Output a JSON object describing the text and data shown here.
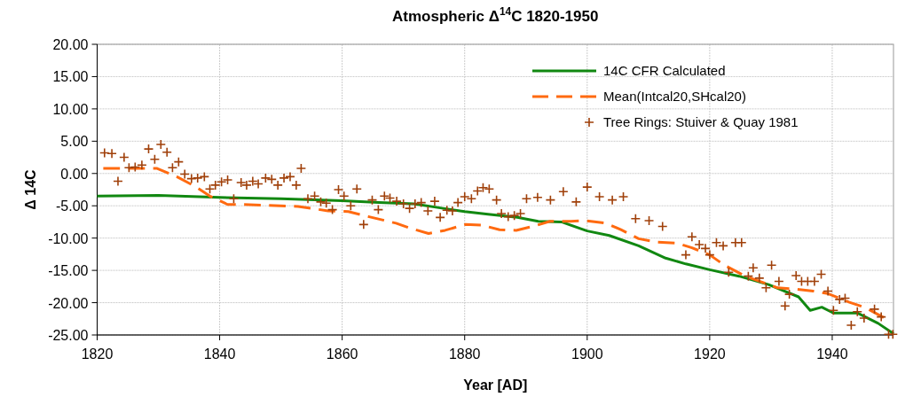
{
  "chart_data": {
    "type": "line",
    "title": "Atmospheric Δ$^{14}$C 1820-1950",
    "xlabel": "Year [AD]",
    "ylabel": "Δ 14C",
    "xlim": [
      1820,
      1950
    ],
    "xticks": [
      1820,
      1840,
      1860,
      1880,
      1900,
      1920,
      1940
    ],
    "ylim": [
      -25,
      20
    ],
    "yticks": [
      {
        "value": 20,
        "label": "20.00"
      },
      {
        "value": 15,
        "label": "15.00"
      },
      {
        "value": 10,
        "label": "10.00"
      },
      {
        "value": 5,
        "label": "5.00"
      },
      {
        "value": 0,
        "label": "0.00"
      },
      {
        "value": -5,
        "label": "-5.00"
      },
      {
        "value": -10,
        "label": "-10.00"
      },
      {
        "value": -15,
        "label": "-15.00"
      },
      {
        "value": -20,
        "label": "-20.00"
      },
      {
        "value": -25,
        "label": "-25.00"
      }
    ],
    "grid": true,
    "legend": "top right",
    "series": [
      {
        "name": "14C CFR Calculated",
        "color": "#118811",
        "line_style": "solid",
        "marker": "none",
        "x": [
          1820,
          1830,
          1840,
          1850,
          1860,
          1866,
          1871.7,
          1876.5,
          1880,
          1883.8,
          1888.6,
          1892,
          1895.8,
          1900,
          1903.6,
          1908.4,
          1912.8,
          1916.1,
          1920,
          1924.8,
          1929.6,
          1934.5,
          1936.4,
          1938.3,
          1940.2,
          1944.1,
          1947.5,
          1950
        ],
        "values": [
          -3.5,
          -3.4,
          -3.7,
          -3.9,
          -4.2,
          -4.5,
          -4.7,
          -5.4,
          -5.9,
          -6.3,
          -6.8,
          -7.4,
          -7.5,
          -8.9,
          -9.6,
          -11.2,
          -13.1,
          -14,
          -14.9,
          -15.9,
          -17.2,
          -19.1,
          -21.2,
          -20.7,
          -21.6,
          -21.6,
          -23.2,
          -24.8
        ]
      },
      {
        "name": "Mean(Intcal20,SHcal20)",
        "color": "#ff6a10",
        "line_style": "dashed",
        "marker": "none",
        "x": [
          1821,
          1829.7,
          1833,
          1836.2,
          1838.4,
          1841.3,
          1844,
          1852.8,
          1855.7,
          1857.7,
          1861,
          1864.4,
          1868.8,
          1871.2,
          1874.1,
          1876.8,
          1880.1,
          1882.8,
          1885.7,
          1888.4,
          1891.5,
          1893.9,
          1897.3,
          1899.7,
          1903.1,
          1905.5,
          1908.4,
          1911.3,
          1914.7,
          1917.1,
          1920,
          1922.4,
          1925.8,
          1931.1,
          1934,
          1936.9,
          1939.3,
          1942.7,
          1945.5,
          1948.4
        ],
        "values": [
          0.8,
          0.8,
          -0.5,
          -2.1,
          -3.5,
          -4.8,
          -4.8,
          -5.1,
          -5.5,
          -5.8,
          -5.9,
          -6.7,
          -7.7,
          -8.5,
          -9.3,
          -8.8,
          -7.9,
          -8,
          -8.7,
          -8.8,
          -8.1,
          -7.4,
          -7.4,
          -7.3,
          -7.7,
          -8.7,
          -10.1,
          -10.6,
          -10.8,
          -11.5,
          -12.6,
          -14.2,
          -15.9,
          -17.7,
          -17.9,
          -18.2,
          -18.6,
          -19.9,
          -20.8,
          -22.3
        ]
      },
      {
        "name": "Tree Rings: Stuiver & Quay 1981",
        "type": "scatter",
        "color": "#a0400a",
        "marker": "cross",
        "x": [
          1821.2,
          1822.4,
          1823.4,
          1824.4,
          1825.2,
          1826.2,
          1827.3,
          1828.4,
          1829.4,
          1830.4,
          1831.4,
          1832.3,
          1833.3,
          1834.3,
          1835.4,
          1836.4,
          1837.5,
          1838.4,
          1839.3,
          1840.3,
          1841.3,
          1842.3,
          1843.5,
          1844.4,
          1845.4,
          1846.3,
          1847.5,
          1848.5,
          1849.5,
          1850.5,
          1851.5,
          1852.5,
          1853.3,
          1854.4,
          1855.5,
          1856.5,
          1857.4,
          1858.4,
          1859.4,
          1860.3,
          1861.4,
          1862.4,
          1863.5,
          1864.9,
          1865.9,
          1866.9,
          1867.8,
          1868.9,
          1870,
          1871,
          1871.9,
          1872.9,
          1874,
          1875.1,
          1876,
          1877.1,
          1878,
          1878.9,
          1880,
          1881.1,
          1882.1,
          1883,
          1884,
          1885.2,
          1886,
          1887.1,
          1888.1,
          1889.1,
          1890.1,
          1891.9,
          1894,
          1896.1,
          1898.2,
          1900,
          1902,
          1904.1,
          1905.9,
          1907.9,
          1910.1,
          1912.3,
          1916.1,
          1917.1,
          1918.3,
          1919.3,
          1920,
          1921.1,
          1922.2,
          1923.1,
          1924.2,
          1925.2,
          1926.3,
          1927.1,
          1928.1,
          1929.2,
          1930.1,
          1931.3,
          1932.3,
          1933,
          1934.1,
          1935,
          1936,
          1937.1,
          1938.2,
          1939.3,
          1940.2,
          1941.2,
          1942.1,
          1943.1,
          1944.1,
          1945.2,
          1946.9,
          1948,
          1949.2,
          1949.9
        ],
        "values": [
          3.2,
          3.1,
          -1.2,
          2.5,
          0.9,
          1.0,
          1.3,
          3.8,
          2.2,
          4.5,
          3.3,
          0.9,
          1.8,
          -0.1,
          -0.8,
          -0.7,
          -0.5,
          -2.4,
          -1.8,
          -1.3,
          -1.0,
          -3.9,
          -1.4,
          -1.8,
          -1.2,
          -1.6,
          -0.7,
          -0.9,
          -1.8,
          -0.7,
          -0.5,
          -1.8,
          0.8,
          -3.9,
          -3.5,
          -4.4,
          -4.6,
          -5.6,
          -2.5,
          -3.5,
          -5.0,
          -2.4,
          -7.9,
          -4.1,
          -5.6,
          -3.5,
          -3.8,
          -4.3,
          -4.7,
          -5.4,
          -4.7,
          -4.5,
          -5.8,
          -4.3,
          -6.8,
          -5.7,
          -5.8,
          -4.5,
          -3.6,
          -3.9,
          -2.7,
          -2.2,
          -2.4,
          -4.1,
          -6.2,
          -6.7,
          -6.5,
          -6.2,
          -3.9,
          -3.7,
          -4.1,
          -2.8,
          -4.4,
          -2.1,
          -3.6,
          -4.1,
          -3.6,
          -7.0,
          -7.3,
          -8.2,
          -12.6,
          -9.8,
          -11,
          -11.6,
          -12.6,
          -10.7,
          -11.2,
          -15.3,
          -10.7,
          -10.7,
          -15.9,
          -14.6,
          -16.2,
          -17.7,
          -14.2,
          -16.7,
          -20.5,
          -18.7,
          -15.8,
          -16.7,
          -16.7,
          -16.7,
          -15.6,
          -18.2,
          -21.2,
          -19.5,
          -19.3,
          -23.5,
          -21.4,
          -22.4,
          -21,
          -22.2,
          -24.9,
          -24.9
        ]
      }
    ]
  }
}
